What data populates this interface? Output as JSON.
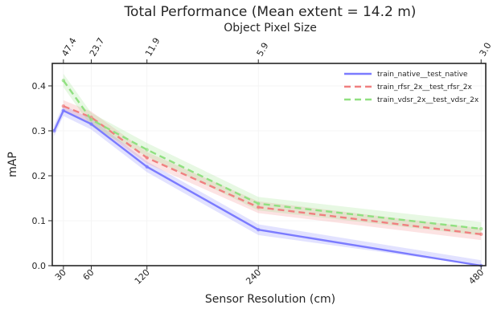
{
  "chart_data": {
    "type": "line",
    "title": "Total Performance  (Mean extent = 14.2 m)",
    "xlabel": "Sensor Resolution (cm)",
    "ylabel": "mAP",
    "top_xlabel": "Object Pixel Size",
    "x_ticks": [
      30,
      60,
      120,
      240,
      480
    ],
    "x_tick_labels": [
      "30",
      "60",
      "120",
      "240",
      "480"
    ],
    "top_tick_labels": [
      "47.4",
      "23.7",
      "11.9",
      "5.9",
      "3.0"
    ],
    "xlim": [
      18,
      485
    ],
    "ylim": [
      0,
      0.45
    ],
    "y_ticks": [
      0.0,
      0.1,
      0.2,
      0.3,
      0.4
    ],
    "y_tick_labels": [
      "0.0",
      "0.1",
      "0.2",
      "0.3",
      "0.4"
    ],
    "grid": true,
    "legend_position": "top-right",
    "series": [
      {
        "name": "train_native__test_native",
        "color": "#7b7bff",
        "dash": "solid",
        "x": [
          20,
          30,
          60,
          120,
          240,
          480
        ],
        "y": [
          0.3,
          0.345,
          0.315,
          0.22,
          0.08,
          0.0
        ],
        "band": 0.012
      },
      {
        "name": "train_rfsr_2x__test_rfsr_2x",
        "color": "#f08080",
        "dash": "dashed",
        "x": [
          30,
          60,
          120,
          240,
          480
        ],
        "y": [
          0.355,
          0.33,
          0.24,
          0.13,
          0.07
        ],
        "band": 0.013
      },
      {
        "name": "train_vdsr_2x__test_vdsr_2x",
        "color": "#90e080",
        "dash": "dashed",
        "x": [
          30,
          60,
          120,
          240,
          480
        ],
        "y": [
          0.412,
          0.325,
          0.258,
          0.138,
          0.082
        ],
        "band": 0.015
      }
    ]
  }
}
